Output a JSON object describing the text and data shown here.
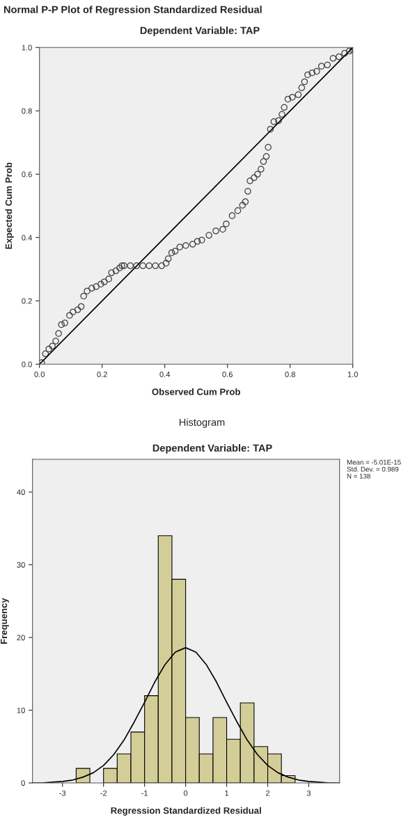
{
  "chart_data": [
    {
      "type": "scatter",
      "title": "Normal P-P Plot of Regression Standardized Residual",
      "subtitle": "Dependent Variable: TAP",
      "xlabel": "Observed Cum Prob",
      "ylabel": "Expected Cum Prob",
      "xlim": [
        0,
        1
      ],
      "ylim": [
        0,
        1
      ],
      "xticks": [
        {
          "value": 0,
          "label": "0.0"
        },
        {
          "value": 0.2,
          "label": "0.2"
        },
        {
          "value": 0.4,
          "label": "0.4"
        },
        {
          "value": 0.6,
          "label": "0.6"
        },
        {
          "value": 0.8,
          "label": "0.8"
        },
        {
          "value": 1,
          "label": "1.0"
        }
      ],
      "yticks": [
        {
          "value": 0,
          "label": "0.0"
        },
        {
          "value": 0.2,
          "label": "0.2"
        },
        {
          "value": 0.4,
          "label": "0.4"
        },
        {
          "value": 0.6,
          "label": "0.6"
        },
        {
          "value": 0.8,
          "label": "0.8"
        },
        {
          "value": 1,
          "label": "1.0"
        }
      ],
      "grid": false,
      "legend": false,
      "marker": "circle",
      "series": [
        {
          "type": "scatter",
          "color": "#404040",
          "x": [
            0.007,
            0.019,
            0.03,
            0.041,
            0.052,
            0.061,
            0.07,
            0.081,
            0.096,
            0.107,
            0.122,
            0.133,
            0.141,
            0.152,
            0.167,
            0.181,
            0.196,
            0.207,
            0.221,
            0.23,
            0.244,
            0.256,
            0.263,
            0.27,
            0.29,
            0.31,
            0.33,
            0.35,
            0.37,
            0.39,
            0.404,
            0.411,
            0.422,
            0.433,
            0.448,
            0.467,
            0.489,
            0.504,
            0.518,
            0.541,
            0.563,
            0.585,
            0.596,
            0.615,
            0.633,
            0.648,
            0.657,
            0.665,
            0.672,
            0.685,
            0.696,
            0.707,
            0.715,
            0.724,
            0.73,
            0.737,
            0.748,
            0.763,
            0.774,
            0.781,
            0.793,
            0.807,
            0.826,
            0.837,
            0.846,
            0.856,
            0.87,
            0.885,
            0.9,
            0.919,
            0.937,
            0.956,
            0.974,
            0.989,
            1.0
          ],
          "values": [
            0.005,
            0.033,
            0.048,
            0.057,
            0.073,
            0.097,
            0.125,
            0.13,
            0.154,
            0.165,
            0.172,
            0.182,
            0.215,
            0.231,
            0.24,
            0.245,
            0.253,
            0.26,
            0.269,
            0.289,
            0.295,
            0.304,
            0.311,
            0.311,
            0.311,
            0.311,
            0.311,
            0.311,
            0.311,
            0.311,
            0.319,
            0.333,
            0.352,
            0.357,
            0.37,
            0.375,
            0.379,
            0.388,
            0.392,
            0.407,
            0.421,
            0.426,
            0.443,
            0.469,
            0.485,
            0.502,
            0.513,
            0.546,
            0.579,
            0.589,
            0.6,
            0.616,
            0.64,
            0.656,
            0.685,
            0.742,
            0.766,
            0.769,
            0.789,
            0.811,
            0.837,
            0.843,
            0.851,
            0.873,
            0.892,
            0.914,
            0.92,
            0.925,
            0.941,
            0.945,
            0.966,
            0.971,
            0.982,
            0.989,
            0.992
          ]
        },
        {
          "type": "line",
          "color": "#000000",
          "marker": "none",
          "x": [
            0,
            1
          ],
          "values": [
            0,
            1
          ]
        }
      ]
    },
    {
      "type": "histogram",
      "title": "Histogram",
      "subtitle": "Dependent Variable: TAP",
      "xlabel": "Regression Standardized Residual",
      "ylabel": "Frequency",
      "xlim": [
        -3.73,
        3.75
      ],
      "ylim": [
        0,
        44.5
      ],
      "xticks": [
        -3,
        -2,
        -1,
        0,
        1,
        2,
        3
      ],
      "yticks": [
        0,
        10,
        20,
        30,
        40
      ],
      "grid": false,
      "legend": false,
      "color": "#d3ce98",
      "bins": [
        -2.667,
        -2.333,
        -2,
        -1.667,
        -1.333,
        -1,
        -0.667,
        -0.333,
        0,
        0.333,
        0.667,
        1,
        1.333,
        1.667,
        2,
        2.333,
        2.667
      ],
      "values": [
        2,
        0,
        2,
        4,
        7,
        12,
        34,
        28,
        9,
        4,
        9,
        6,
        11,
        5,
        4,
        1
      ],
      "annotations": [
        "Mean = -5.01E-15",
        "Std. Dev. = 0.989",
        "N = 138"
      ],
      "series": [
        {
          "type": "line",
          "color": "#000000",
          "x": [
            -3.73,
            -3.5,
            -3.25,
            -3,
            -2.75,
            -2.5,
            -2.25,
            -2,
            -1.75,
            -1.5,
            -1.25,
            -1,
            -0.75,
            -0.5,
            -0.25,
            0,
            0.25,
            0.5,
            0.75,
            1,
            1.25,
            1.5,
            1.75,
            2,
            2.25,
            2.5,
            2.75,
            3,
            3.25,
            3.5,
            3.75
          ],
          "values": [
            0,
            0,
            0.1,
            0.2,
            0.4,
            0.8,
            1.4,
            2.4,
            3.9,
            5.9,
            8.4,
            11.1,
            13.9,
            16.3,
            18,
            18.6,
            18,
            16.3,
            13.9,
            11.1,
            8.4,
            5.9,
            3.9,
            2.4,
            1.4,
            0.8,
            0.4,
            0.2,
            0.1,
            0,
            0
          ]
        }
      ]
    }
  ]
}
